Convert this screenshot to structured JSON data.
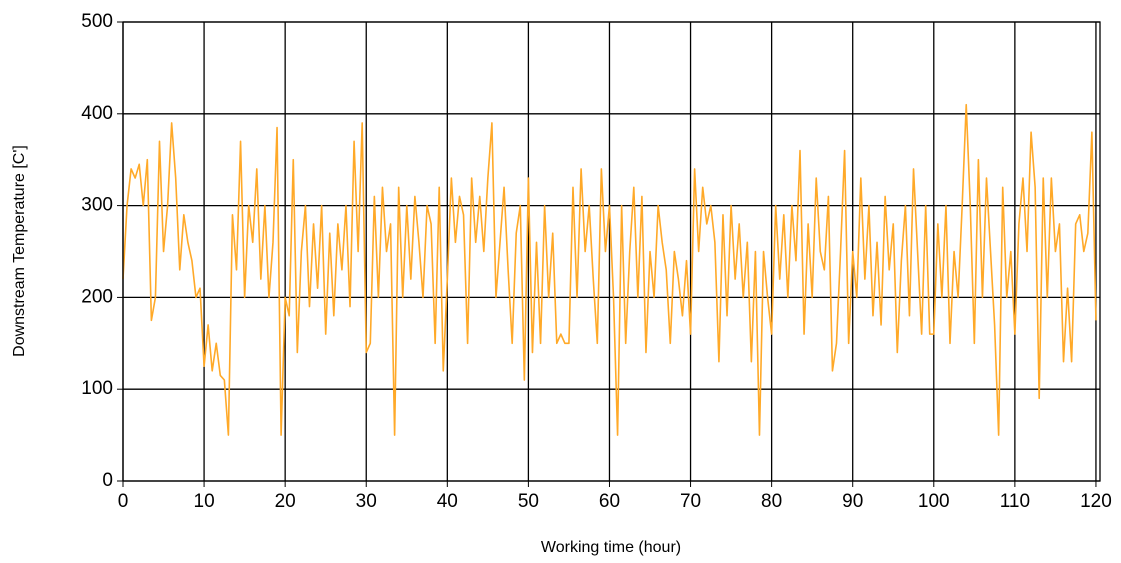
{
  "chart_data": {
    "type": "line",
    "xlabel": "Working time (hour)",
    "ylabel": "Downstream Temperature [C']",
    "xlim": [
      0,
      120.5
    ],
    "ylim": [
      0,
      500
    ],
    "xticks": [
      0,
      10,
      20,
      30,
      40,
      50,
      60,
      70,
      80,
      90,
      100,
      110,
      120
    ],
    "yticks": [
      0,
      100,
      200,
      300,
      400,
      500
    ],
    "grid": true,
    "x": [
      0,
      0.5,
      1,
      1.5,
      2,
      2.5,
      3,
      3.5,
      4,
      4.5,
      5,
      5.5,
      6,
      6.5,
      7,
      7.5,
      8,
      8.5,
      9,
      9.5,
      10,
      10.5,
      11,
      11.5,
      12,
      12.5,
      13,
      13.5,
      14,
      14.5,
      15,
      15.5,
      16,
      16.5,
      17,
      17.5,
      18,
      18.5,
      19,
      19.5,
      20,
      20.5,
      21,
      21.5,
      22,
      22.5,
      23,
      23.5,
      24,
      24.5,
      25,
      25.5,
      26,
      26.5,
      27,
      27.5,
      28,
      28.5,
      29,
      29.5,
      30,
      30.5,
      31,
      31.5,
      32,
      32.5,
      33,
      33.5,
      34,
      34.5,
      35,
      35.5,
      36,
      36.5,
      37,
      37.5,
      38,
      38.5,
      39,
      39.5,
      40,
      40.5,
      41,
      41.5,
      42,
      42.5,
      43,
      43.5,
      44,
      44.5,
      45,
      45.5,
      46,
      46.5,
      47,
      47.5,
      48,
      48.5,
      49,
      49.5,
      50,
      50.5,
      51,
      51.5,
      52,
      52.5,
      53,
      53.5,
      54,
      54.5,
      55,
      55.5,
      56,
      56.5,
      57,
      57.5,
      58,
      58.5,
      59,
      59.5,
      60,
      60.5,
      61,
      61.5,
      62,
      62.5,
      63,
      63.5,
      64,
      64.5,
      65,
      65.5,
      66,
      66.5,
      67,
      67.5,
      68,
      68.5,
      69,
      69.5,
      70,
      70.5,
      71,
      71.5,
      72,
      72.5,
      73,
      73.5,
      74,
      74.5,
      75,
      75.5,
      76,
      76.5,
      77,
      77.5,
      78,
      78.5,
      79,
      79.5,
      80,
      80.5,
      81,
      81.5,
      82,
      82.5,
      83,
      83.5,
      84,
      84.5,
      85,
      85.5,
      86,
      86.5,
      87,
      87.5,
      88,
      88.5,
      89,
      89.5,
      90,
      90.5,
      91,
      91.5,
      92,
      92.5,
      93,
      93.5,
      94,
      94.5,
      95,
      95.5,
      96,
      96.5,
      97,
      97.5,
      98,
      98.5,
      99,
      99.5,
      100,
      100.5,
      101,
      101.5,
      102,
      102.5,
      103,
      103.5,
      104,
      104.5,
      105,
      105.5,
      106,
      106.5,
      107,
      107.5,
      108,
      108.5,
      109,
      109.5,
      110,
      110.5,
      111,
      111.5,
      112,
      112.5,
      113,
      113.5,
      114,
      114.5,
      115,
      115.5,
      116,
      116.5,
      117,
      117.5,
      118,
      118.5,
      119,
      119.5,
      120
    ],
    "series": [
      {
        "color": "#ffa928",
        "values": [
          220,
          300,
          340,
          330,
          345,
          300,
          350,
          175,
          200,
          370,
          250,
          300,
          390,
          330,
          230,
          290,
          260,
          240,
          200,
          210,
          125,
          170,
          120,
          150,
          115,
          110,
          50,
          290,
          230,
          370,
          200,
          300,
          260,
          340,
          220,
          300,
          200,
          260,
          385,
          50,
          200,
          180,
          350,
          140,
          250,
          300,
          190,
          280,
          210,
          300,
          160,
          270,
          180,
          280,
          230,
          300,
          190,
          370,
          250,
          390,
          140,
          150,
          310,
          200,
          320,
          250,
          280,
          50,
          320,
          200,
          300,
          220,
          310,
          260,
          200,
          300,
          280,
          150,
          320,
          120,
          220,
          330,
          260,
          310,
          290,
          150,
          330,
          260,
          310,
          250,
          330,
          390,
          200,
          260,
          320,
          230,
          150,
          270,
          300,
          110,
          330,
          140,
          260,
          150,
          300,
          200,
          270,
          150,
          160,
          150,
          150,
          320,
          200,
          340,
          250,
          300,
          220,
          150,
          340,
          250,
          300,
          200,
          50,
          300,
          150,
          250,
          320,
          200,
          310,
          140,
          250,
          200,
          300,
          260,
          230,
          150,
          250,
          220,
          180,
          240,
          160,
          340,
          250,
          320,
          280,
          300,
          260,
          130,
          290,
          180,
          300,
          220,
          280,
          200,
          260,
          130,
          250,
          50,
          250,
          200,
          160,
          300,
          220,
          290,
          200,
          300,
          240,
          360,
          160,
          280,
          200,
          330,
          250,
          230,
          310,
          120,
          150,
          250,
          360,
          150,
          250,
          200,
          330,
          220,
          300,
          180,
          260,
          170,
          310,
          230,
          280,
          140,
          240,
          300,
          180,
          340,
          250,
          160,
          300,
          160,
          160,
          280,
          200,
          300,
          150,
          250,
          200,
          300,
          410,
          300,
          150,
          350,
          200,
          330,
          250,
          170,
          50,
          320,
          200,
          250,
          160,
          280,
          330,
          250,
          380,
          320,
          90,
          330,
          200,
          330,
          250,
          280,
          130,
          210,
          130,
          280,
          290,
          250,
          270,
          380,
          175
        ]
      }
    ]
  }
}
